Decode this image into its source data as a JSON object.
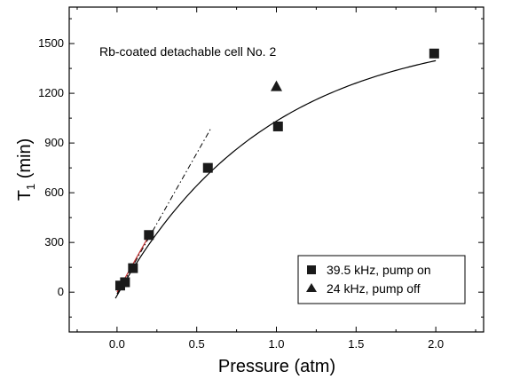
{
  "chart_data": {
    "type": "scatter",
    "title": "",
    "annotation": "Rb-coated detachable cell No. 2",
    "xlabel": "Pressure (atm)",
    "ylabel_main": "T",
    "ylabel_sub": "1",
    "ylabel_unit": " (min)",
    "xlim": [
      -0.3,
      2.3
    ],
    "ylim": [
      -240,
      1720
    ],
    "xticks": [
      0.0,
      0.5,
      1.0,
      1.5,
      2.0
    ],
    "xtick_labels": [
      "0.0",
      "0.5",
      "1.0",
      "1.5",
      "2.0"
    ],
    "yticks": [
      0,
      300,
      600,
      900,
      1200,
      1500
    ],
    "ytick_labels": [
      "0",
      "300",
      "600",
      "900",
      "1200",
      "1500"
    ],
    "grid": false,
    "legend_position": "bottom-right",
    "series": [
      {
        "name": "39.5 kHz, pump on",
        "marker": "square",
        "color": "#1a1a1a",
        "points": [
          {
            "x": 0.02,
            "y": 40
          },
          {
            "x": 0.05,
            "y": 60
          },
          {
            "x": 0.1,
            "y": 145
          },
          {
            "x": 0.2,
            "y": 345
          },
          {
            "x": 0.57,
            "y": 750
          },
          {
            "x": 1.01,
            "y": 1000
          },
          {
            "x": 1.99,
            "y": 1440
          }
        ]
      },
      {
        "name": "24 kHz, pump off",
        "marker": "triangle",
        "color": "#1a1a1a",
        "points": [
          {
            "x": 1.0,
            "y": 1240
          }
        ]
      }
    ],
    "fit_curve": {
      "style": "solid",
      "color": "#000000",
      "x_start": -0.01,
      "x_end": 2.0,
      "amplitude": 1610,
      "rate": 1.06,
      "offset": -20
    },
    "linear_fit_dashdot": {
      "style": "dash-dot",
      "color": "#000000",
      "x": [
        0.0,
        0.59
      ],
      "y": [
        -10,
        990
      ]
    },
    "linear_fit_red": {
      "style": "solid",
      "color": "#c03030",
      "x": [
        0.0,
        0.2
      ],
      "y": [
        0,
        340
      ]
    }
  }
}
